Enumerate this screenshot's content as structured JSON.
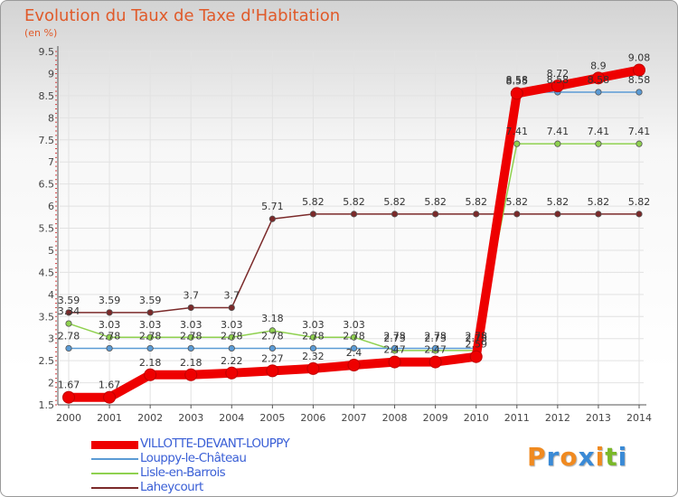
{
  "title": "Evolution du Taux de Taxe d'Habitation",
  "unit": "(en %)",
  "logo": {
    "letters": [
      "P",
      "r",
      "o",
      "x",
      "i",
      "t",
      "i"
    ],
    "colors": [
      "#f08a20",
      "#3a8ad6",
      "#f08a20",
      "#3a8ad6",
      "#f08a20",
      "#7ab82a",
      "#3a8ad6"
    ]
  },
  "chart_data": {
    "type": "line",
    "title": "Evolution du Taux de Taxe d'Habitation",
    "ylabel": "(en %)",
    "xlabel": "",
    "categories": [
      "2000",
      "2001",
      "2002",
      "2003",
      "2004",
      "2005",
      "2006",
      "2007",
      "2008",
      "2009",
      "2010",
      "2011",
      "2012",
      "2013",
      "2014"
    ],
    "ylim": [
      1.5,
      9.5
    ],
    "yticks": [
      "1.5",
      "2",
      "2.5",
      "3",
      "3.5",
      "4",
      "4.5",
      "5",
      "5.5",
      "6",
      "6.5",
      "7",
      "7.5",
      "8",
      "8.5",
      "9",
      "9.5"
    ],
    "series": [
      {
        "name": "VILLOTTE-DEVANT-LOUPPY",
        "color": "#ee0000",
        "labelColor": "#333333",
        "values": [
          1.67,
          1.67,
          2.18,
          2.18,
          2.22,
          2.27,
          2.32,
          2.4,
          2.47,
          2.47,
          2.59,
          8.55,
          8.72,
          8.9,
          9.08
        ],
        "labels": [
          "1.67",
          "1.67",
          "2.18",
          "2.18",
          "2.22",
          "2.27",
          "2.32",
          "2.4",
          "2.47",
          "2.47",
          "2.59",
          "8.55",
          "8.72",
          "8.9",
          "9.08"
        ]
      },
      {
        "name": "Louppy-le-Château",
        "color": "#5b9bd5",
        "labelColor": "#333333",
        "values": [
          2.78,
          2.78,
          2.78,
          2.78,
          2.78,
          2.78,
          2.78,
          2.78,
          2.78,
          2.78,
          2.78,
          8.58,
          8.58,
          8.58,
          8.58
        ],
        "labels": [
          "2.78",
          "2.78",
          "2.78",
          "2.78",
          "2.78",
          "2.78",
          "2.78",
          "2.78",
          "2.78",
          "2.78",
          "2.78",
          "8.58",
          "8.58",
          "8.58",
          "8.58"
        ]
      },
      {
        "name": "Lisle-en-Barrois",
        "color": "#8fd14f",
        "labelColor": "#333333",
        "values": [
          3.34,
          3.03,
          3.03,
          3.03,
          3.03,
          3.18,
          3.03,
          3.03,
          2.73,
          2.73,
          2.73,
          7.41,
          7.41,
          7.41,
          7.41
        ],
        "labels": [
          "3.34",
          "3.03",
          "3.03",
          "3.03",
          "3.03",
          "3.18",
          "3.03",
          "3.03",
          "2.73",
          "2.73",
          "2.73",
          "7.41",
          "7.41",
          "7.41",
          "7.41"
        ]
      },
      {
        "name": "Laheycourt",
        "color": "#7b2a2a",
        "labelColor": "#333333",
        "values": [
          3.59,
          3.59,
          3.59,
          3.7,
          3.7,
          5.71,
          5.82,
          5.82,
          5.82,
          5.82,
          5.82,
          5.82,
          5.82,
          5.82,
          5.82
        ],
        "labels": [
          "3.59",
          "3.59",
          "3.59",
          "3.7",
          "3.7",
          "5.71",
          "5.82",
          "5.82",
          "5.82",
          "5.82",
          "5.82",
          "5.82",
          "5.82",
          "5.82",
          "5.82"
        ]
      }
    ],
    "legend": [
      "VILLOTTE-DEVANT-LOUPPY",
      "Louppy-le-Château",
      "Lisle-en-Barrois",
      "Laheycourt"
    ]
  }
}
